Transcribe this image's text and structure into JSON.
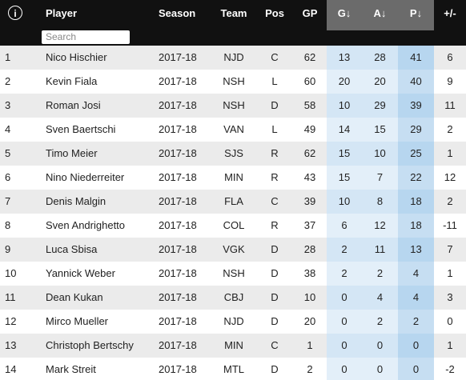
{
  "header": {
    "info": "i",
    "search_placeholder": "Search",
    "columns": [
      "Player",
      "Season",
      "Team",
      "Pos",
      "GP",
      "G↓",
      "A↓",
      "P↓",
      "+/-"
    ]
  },
  "table": {
    "rows": [
      [
        1,
        "Nico Hischier",
        "2017-18",
        "NJD",
        "C",
        62,
        13,
        28,
        41,
        6
      ],
      [
        2,
        "Kevin Fiala",
        "2017-18",
        "NSH",
        "L",
        60,
        20,
        20,
        40,
        9
      ],
      [
        3,
        "Roman Josi",
        "2017-18",
        "NSH",
        "D",
        58,
        10,
        29,
        39,
        11
      ],
      [
        4,
        "Sven Baertschi",
        "2017-18",
        "VAN",
        "L",
        49,
        14,
        15,
        29,
        2
      ],
      [
        5,
        "Timo Meier",
        "2017-18",
        "SJS",
        "R",
        62,
        15,
        10,
        25,
        1
      ],
      [
        6,
        "Nino Niederreiter",
        "2017-18",
        "MIN",
        "R",
        43,
        15,
        7,
        22,
        12
      ],
      [
        7,
        "Denis Malgin",
        "2017-18",
        "FLA",
        "C",
        39,
        10,
        8,
        18,
        2
      ],
      [
        8,
        "Sven Andrighetto",
        "2017-18",
        "COL",
        "R",
        37,
        6,
        12,
        18,
        -11
      ],
      [
        9,
        "Luca Sbisa",
        "2017-18",
        "VGK",
        "D",
        28,
        2,
        11,
        13,
        7
      ],
      [
        10,
        "Yannick Weber",
        "2017-18",
        "NSH",
        "D",
        38,
        2,
        2,
        4,
        1
      ],
      [
        11,
        "Dean Kukan",
        "2017-18",
        "CBJ",
        "D",
        10,
        0,
        4,
        4,
        3
      ],
      [
        12,
        "Mirco Mueller",
        "2017-18",
        "NJD",
        "D",
        20,
        0,
        2,
        2,
        0
      ],
      [
        13,
        "Christoph Bertschy",
        "2017-18",
        "MIN",
        "C",
        1,
        0,
        0,
        0,
        1
      ],
      [
        14,
        "Mark Streit",
        "2017-18",
        "MTL",
        "D",
        2,
        0,
        0,
        0,
        -2
      ]
    ]
  }
}
